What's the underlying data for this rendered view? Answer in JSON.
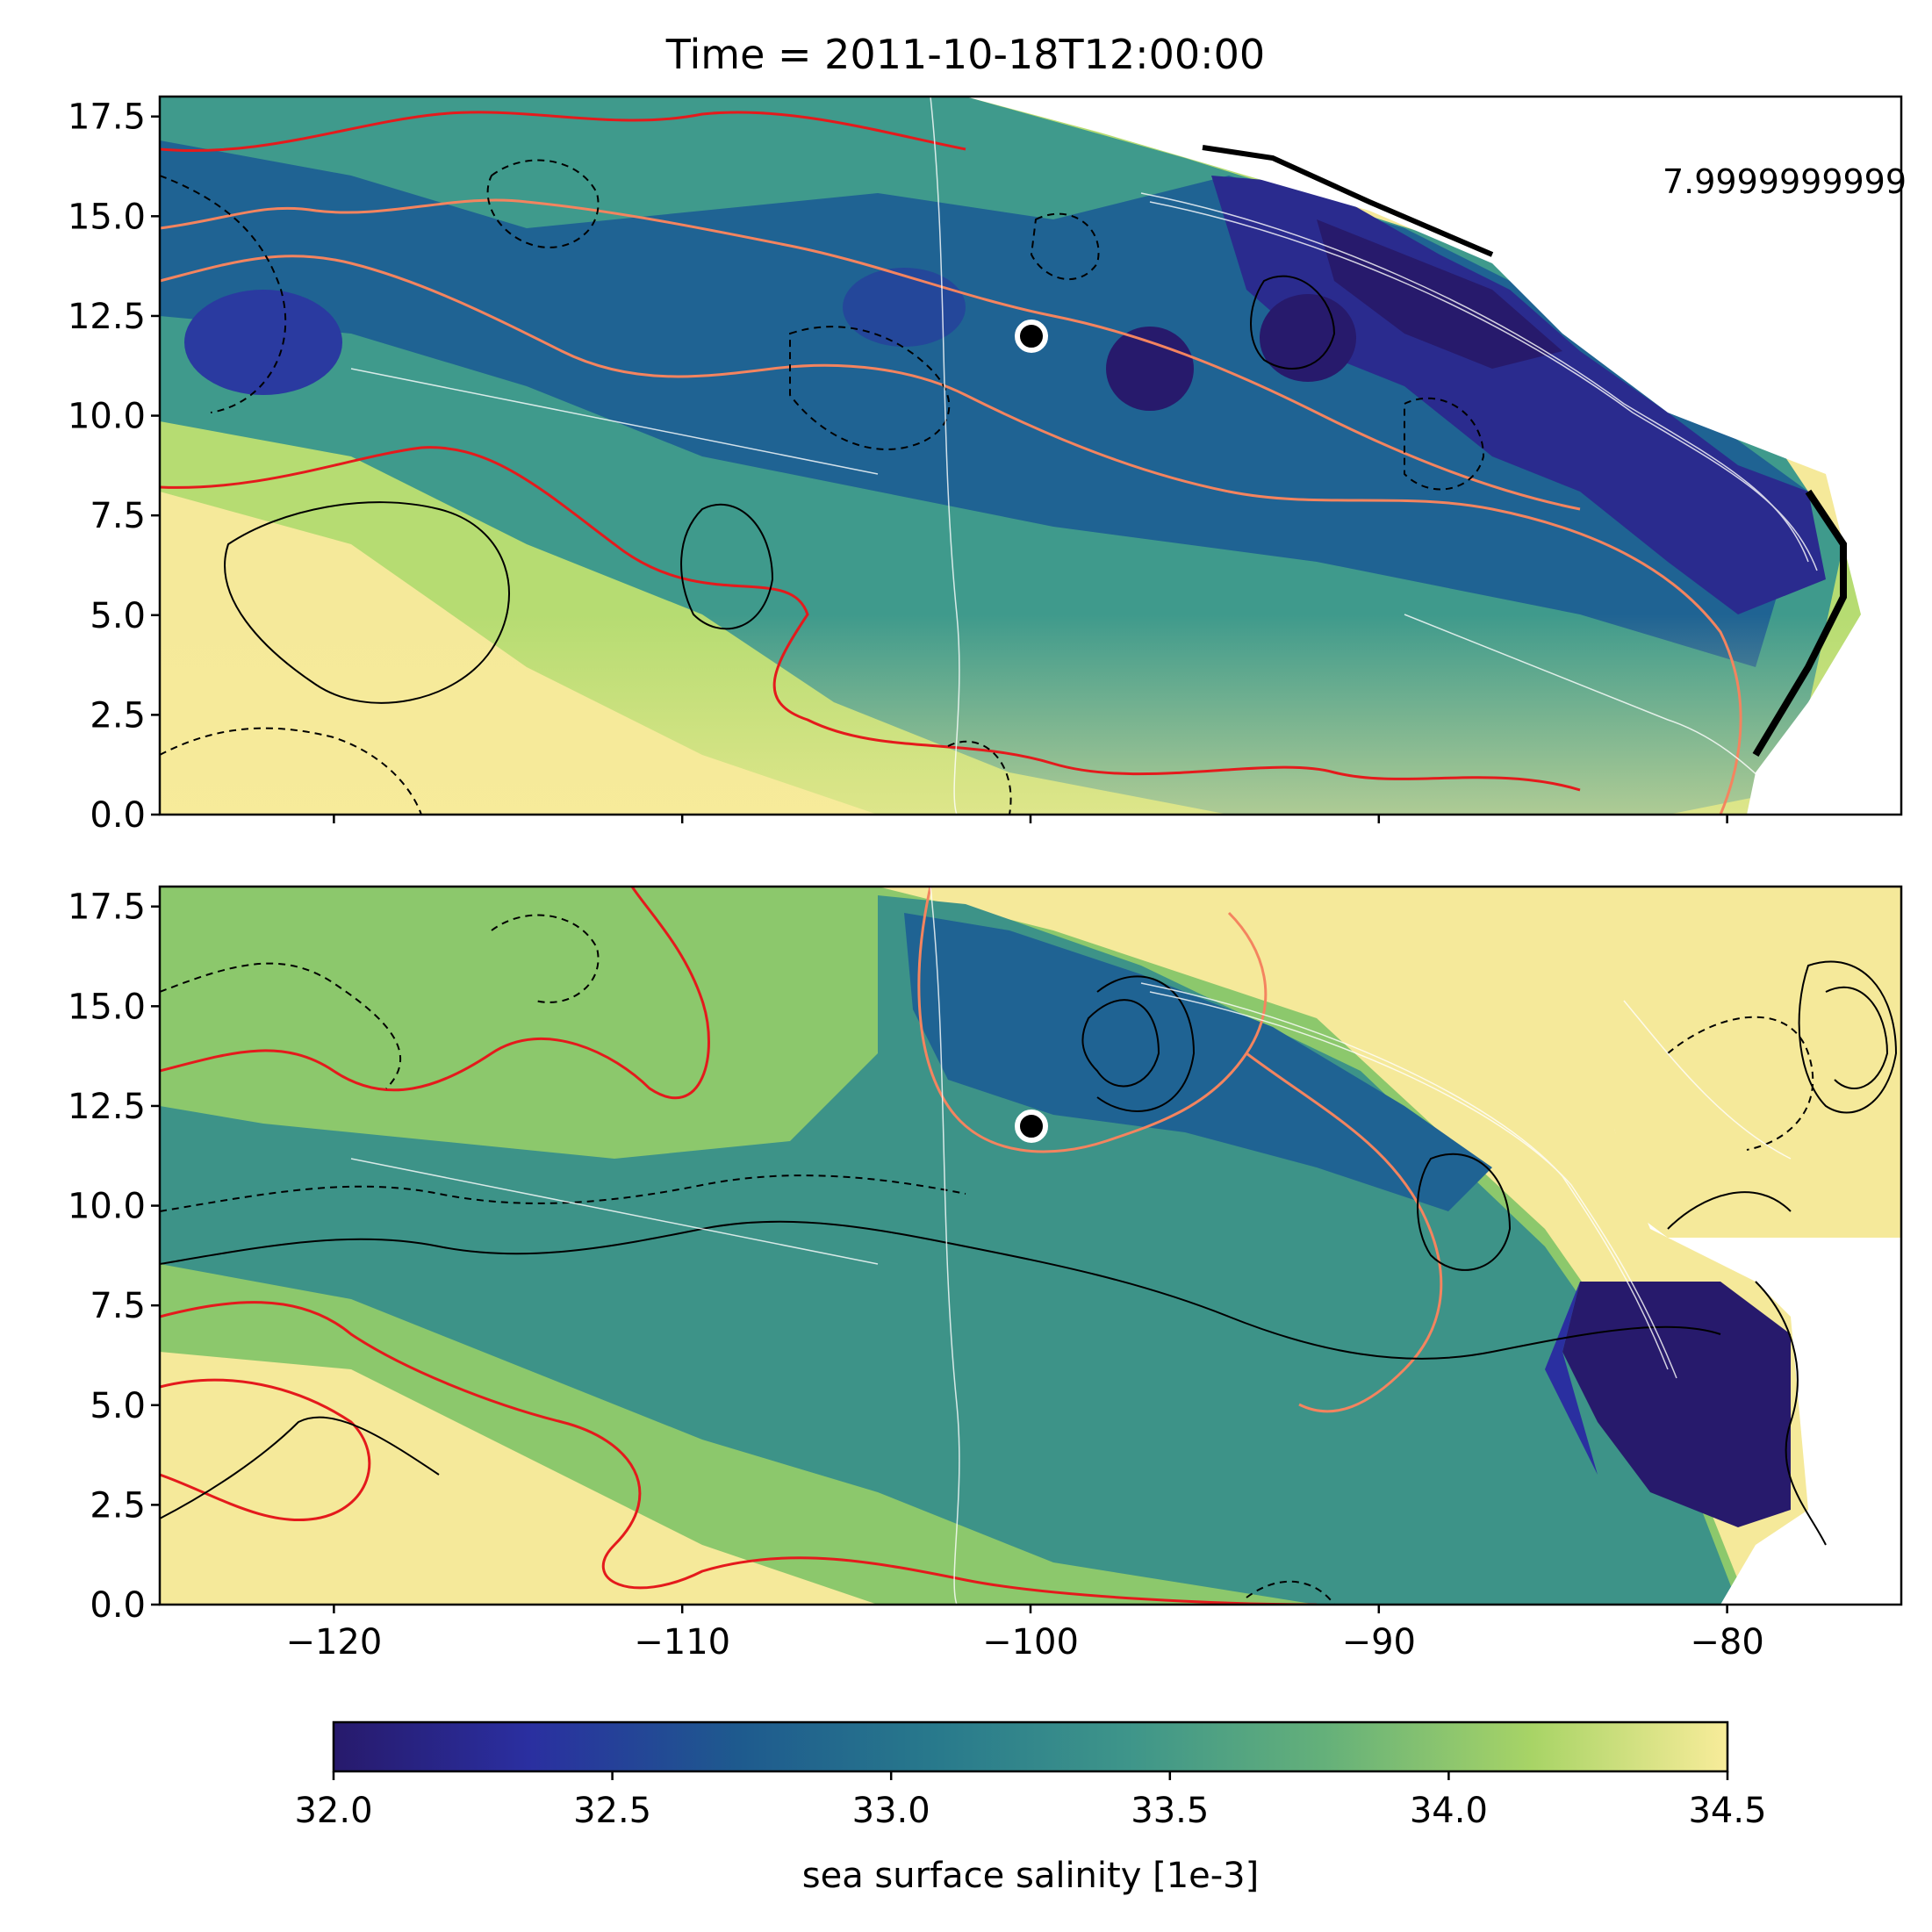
{
  "title": "Time = 2011-10-18T12:00:00",
  "annotation": "7.9999999999",
  "colors": {
    "colormap": [
      "#271a6c",
      "#2a2fa0",
      "#1e5a8e",
      "#28798c",
      "#3e958a",
      "#64b07a",
      "#a8d466",
      "#f8ec9a"
    ],
    "contour_black": "#000000",
    "contour_red": "#e41a1c",
    "contour_orange": "#f4845f",
    "contour_white": "#ffffff",
    "marker": "#000000",
    "marker_edge": "#ffffff"
  },
  "chart_data": [
    {
      "type": "heatmap",
      "panel": "top",
      "variable": "sea surface salinity",
      "xlim": [
        -125,
        -75
      ],
      "ylim": [
        0,
        18
      ],
      "xticks": [
        -120,
        -110,
        -100,
        -90,
        -80
      ],
      "yticks": [
        "0.0",
        "2.5",
        "5.0",
        "7.5",
        "10.0",
        "12.5",
        "15.0",
        "17.5"
      ],
      "x_tick_labels_shown": false,
      "marker": {
        "lon": -100,
        "lat": 12
      },
      "description_values": {
        "low_salinity_core": 32.0,
        "high_salinity_south": 34.5
      }
    },
    {
      "type": "heatmap",
      "panel": "bottom",
      "variable": "sea surface salinity",
      "xlim": [
        -125,
        -75
      ],
      "ylim": [
        0,
        18
      ],
      "xticks": [
        -120,
        -110,
        -100,
        -90,
        -80
      ],
      "xtick_labels": [
        "−120",
        "−110",
        "−100",
        "−90",
        "−80"
      ],
      "yticks": [
        "0.0",
        "2.5",
        "5.0",
        "7.5",
        "10.0",
        "12.5",
        "15.0",
        "17.5"
      ],
      "x_tick_labels_shown": true,
      "marker": {
        "lon": -100,
        "lat": 12
      },
      "description_values": {
        "low_salinity_core": 32.0,
        "high_salinity_south": 34.5
      }
    }
  ],
  "colorbar": {
    "vmin": 32.0,
    "vmax": 34.5,
    "ticks": [
      "32.0",
      "32.5",
      "33.0",
      "33.5",
      "34.0",
      "34.5"
    ],
    "label": "sea surface salinity [1e-3]"
  }
}
